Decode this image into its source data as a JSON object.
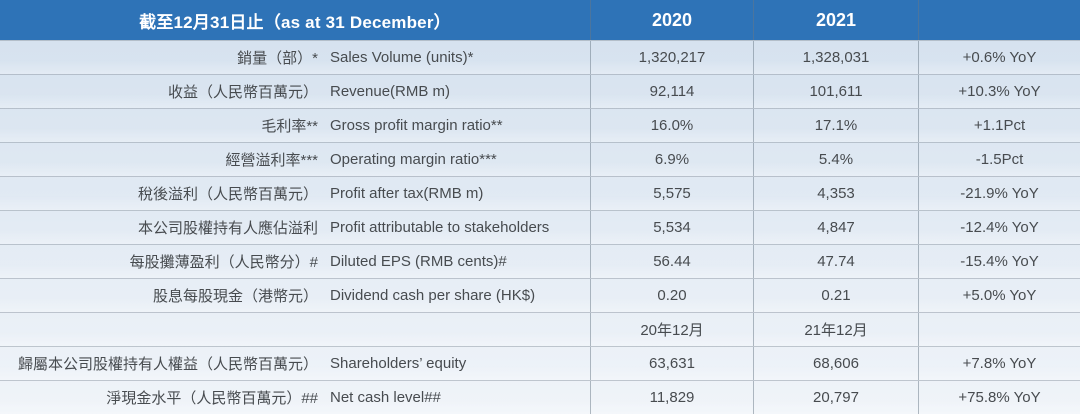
{
  "colors": {
    "header_bg": "#2e73b7",
    "header_text": "#ffffff",
    "body_top": "#d6e2ef",
    "body_bottom": "#f0f4f9",
    "text": "#474b4f",
    "divider": "#a4b1bf"
  },
  "header": {
    "title": "截至12月31日止（as at 31 December）",
    "col_2020": "2020",
    "col_2021": "2021",
    "col_yoy": ""
  },
  "rows": [
    {
      "zh": "銷量（部）*",
      "en": "Sales Volume (units)*",
      "v2020": "1,320,217",
      "v2021": "1,328,031",
      "yoy": "+0.6% YoY"
    },
    {
      "zh": "收益（人民幣百萬元）",
      "en": "Revenue(RMB m)",
      "v2020": "92,114",
      "v2021": "101,611",
      "yoy": "+10.3% YoY"
    },
    {
      "zh": "毛利率**",
      "en": "Gross profit margin ratio**",
      "v2020": "16.0%",
      "v2021": "17.1%",
      "yoy": "+1.1Pct"
    },
    {
      "zh": "經營溢利率***",
      "en": "Operating margin ratio***",
      "v2020": "6.9%",
      "v2021": "5.4%",
      "yoy": "-1.5Pct"
    },
    {
      "zh": "稅後溢利（人民幣百萬元）",
      "en": "Profit after tax(RMB m)",
      "v2020": "5,575",
      "v2021": "4,353",
      "yoy": "-21.9% YoY"
    },
    {
      "zh": "本公司股權持有人應佔溢利",
      "en": "Profit attributable to stakeholders",
      "v2020": "5,534",
      "v2021": "4,847",
      "yoy": "-12.4% YoY"
    },
    {
      "zh": "每股攤薄盈利（人民幣分）#",
      "en": "Diluted EPS (RMB cents)#",
      "v2020": "56.44",
      "v2021": "47.74",
      "yoy": "-15.4% YoY"
    },
    {
      "zh": "股息每股現金（港幣元）",
      "en": "Dividend cash per share (HK$)",
      "v2020": "0.20",
      "v2021": "0.21",
      "yoy": "+5.0% YoY"
    },
    {
      "zh": "",
      "en": "",
      "v2020": "20年12月",
      "v2021": "21年12月",
      "yoy": ""
    },
    {
      "zh": "歸屬本公司股權持有人權益（人民幣百萬元）",
      "en": "Shareholders’ equity",
      "v2020": "63,631",
      "v2021": "68,606",
      "yoy": "+7.8% YoY"
    },
    {
      "zh": "淨現金水平（人民幣百萬元）##",
      "en": "Net cash level##",
      "v2020": "11,829",
      "v2021": "20,797",
      "yoy": "+75.8% YoY"
    }
  ]
}
